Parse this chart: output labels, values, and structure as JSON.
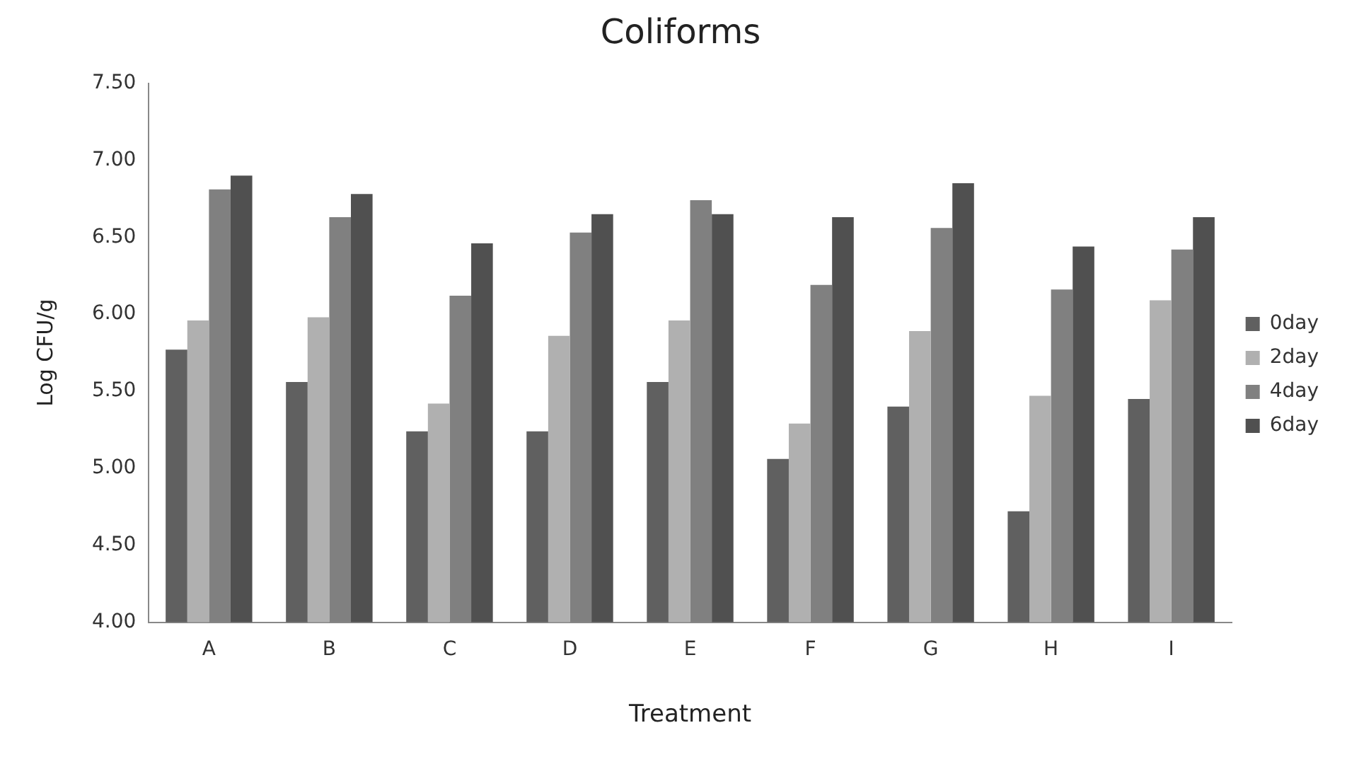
{
  "chart_data": {
    "type": "bar",
    "title": "Coliforms",
    "xlabel": "Treatment",
    "ylabel": "Log CFU/g",
    "categories": [
      "A",
      "B",
      "C",
      "D",
      "E",
      "F",
      "G",
      "H",
      "I"
    ],
    "series": [
      {
        "name": "0day",
        "color": "#606060",
        "values": [
          5.77,
          5.56,
          5.24,
          5.24,
          5.56,
          5.06,
          5.4,
          4.72,
          5.45
        ]
      },
      {
        "name": "2day",
        "color": "#b0b0b0",
        "values": [
          5.96,
          5.98,
          5.42,
          5.86,
          5.96,
          5.29,
          5.89,
          5.47,
          6.09
        ]
      },
      {
        "name": "4day",
        "color": "#808080",
        "values": [
          6.81,
          6.63,
          6.12,
          6.53,
          6.74,
          6.19,
          6.56,
          6.16,
          6.42
        ]
      },
      {
        "name": "6day",
        "color": "#505050",
        "values": [
          6.9,
          6.78,
          6.46,
          6.65,
          6.65,
          6.63,
          6.85,
          6.44,
          6.63
        ]
      }
    ],
    "ylim": [
      4,
      7.5
    ],
    "yticks": [
      {
        "value": 4,
        "label": "4.00"
      },
      {
        "value": 4.5,
        "label": "4.50"
      },
      {
        "value": 5,
        "label": "5.00"
      },
      {
        "value": 5.5,
        "label": "5.50"
      },
      {
        "value": 6,
        "label": "6.00"
      },
      {
        "value": 6.5,
        "label": "6.50"
      },
      {
        "value": 7,
        "label": "7.00"
      },
      {
        "value": 7.5,
        "label": "7.50"
      }
    ],
    "grid": false,
    "legend": "right"
  }
}
